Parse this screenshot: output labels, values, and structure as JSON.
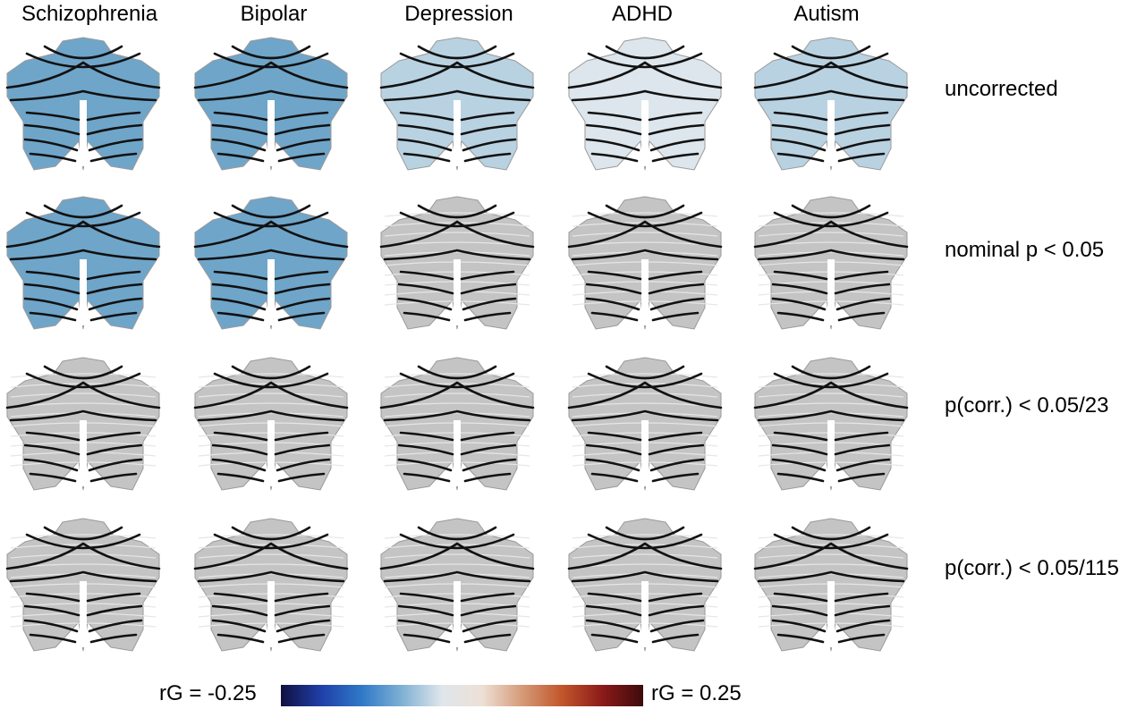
{
  "columns": [
    "Schizophrenia",
    "Bipolar",
    "Depression",
    "ADHD",
    "Autism"
  ],
  "rows": [
    "uncorrected",
    "nominal p < 0.05",
    "p(corr.) < 0.05/23",
    "p(corr.) < 0.05/115"
  ],
  "legend": {
    "min_label": "rG = -0.25",
    "max_label": "rG = 0.25",
    "colors": [
      "#101040",
      "#1f3fa8",
      "#2f78c7",
      "#7fb0d4",
      "#dfe6eb",
      "#eee0d6",
      "#d59a77",
      "#c1552a",
      "#8a1a1a",
      "#3d0b0b"
    ]
  },
  "palette": {
    "lightblue": "#b9d2e2",
    "midblue": "#6fa5c9",
    "blue": "#4b8fc0",
    "darkblue": "#2a74c0",
    "pale": "#dde6ec",
    "gray": "#c4c4c4",
    "contour": "#111111"
  },
  "maps": [
    [
      "midblue",
      "midblue",
      "lightblue",
      "pale",
      "lightblue"
    ],
    [
      "midblue",
      "midblue",
      "gray",
      "gray",
      "gray"
    ],
    [
      "gray",
      "gray",
      "gray",
      "gray",
      "gray"
    ],
    [
      "gray",
      "gray",
      "gray",
      "gray",
      "gray"
    ]
  ]
}
